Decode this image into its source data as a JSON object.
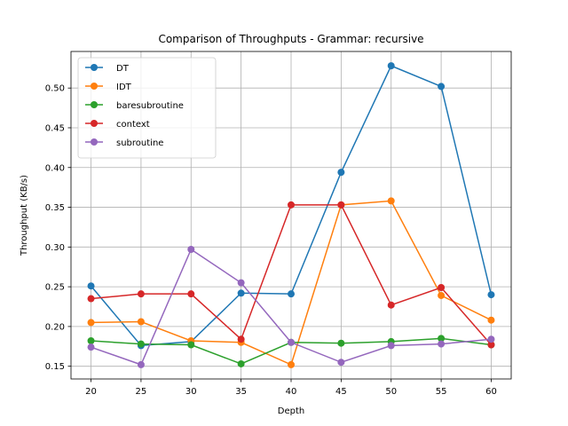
{
  "chart_data": {
    "type": "line",
    "title": "Comparison of Throughputs - Grammar: recursive",
    "xlabel": "Depth",
    "ylabel": "Throughput (KB/s)",
    "x": [
      20,
      25,
      30,
      35,
      40,
      45,
      50,
      55,
      60
    ],
    "xlim": [
      18,
      62
    ],
    "ylim": [
      0.134,
      0.546
    ],
    "xticks": [
      20,
      25,
      30,
      35,
      40,
      45,
      50,
      55,
      60
    ],
    "yticks": [
      0.15,
      0.2,
      0.25,
      0.3,
      0.35,
      0.4,
      0.45,
      0.5
    ],
    "ytick_labels": [
      "0.15",
      "0.20",
      "0.25",
      "0.30",
      "0.35",
      "0.40",
      "0.45",
      "0.50"
    ],
    "grid": true,
    "legend_position": "top-left",
    "series": [
      {
        "name": "DT",
        "color": "#1f77b4",
        "values": [
          0.251,
          0.176,
          0.181,
          0.242,
          0.241,
          0.394,
          0.528,
          0.502,
          0.24
        ]
      },
      {
        "name": "IDT",
        "color": "#ff7f0e",
        "values": [
          0.205,
          0.206,
          0.182,
          0.18,
          0.152,
          0.353,
          0.358,
          0.239,
          0.208
        ]
      },
      {
        "name": "baresubroutine",
        "color": "#2ca02c",
        "values": [
          0.182,
          0.178,
          0.177,
          0.153,
          0.18,
          0.179,
          0.181,
          0.185,
          0.177
        ]
      },
      {
        "name": "context",
        "color": "#d62728",
        "values": [
          0.235,
          0.241,
          0.241,
          0.184,
          0.353,
          0.353,
          0.227,
          0.249,
          0.177
        ]
      },
      {
        "name": "subroutine",
        "color": "#9467bd",
        "values": [
          0.174,
          0.152,
          0.297,
          0.255,
          0.18,
          0.155,
          0.176,
          0.178,
          0.184
        ]
      }
    ]
  }
}
